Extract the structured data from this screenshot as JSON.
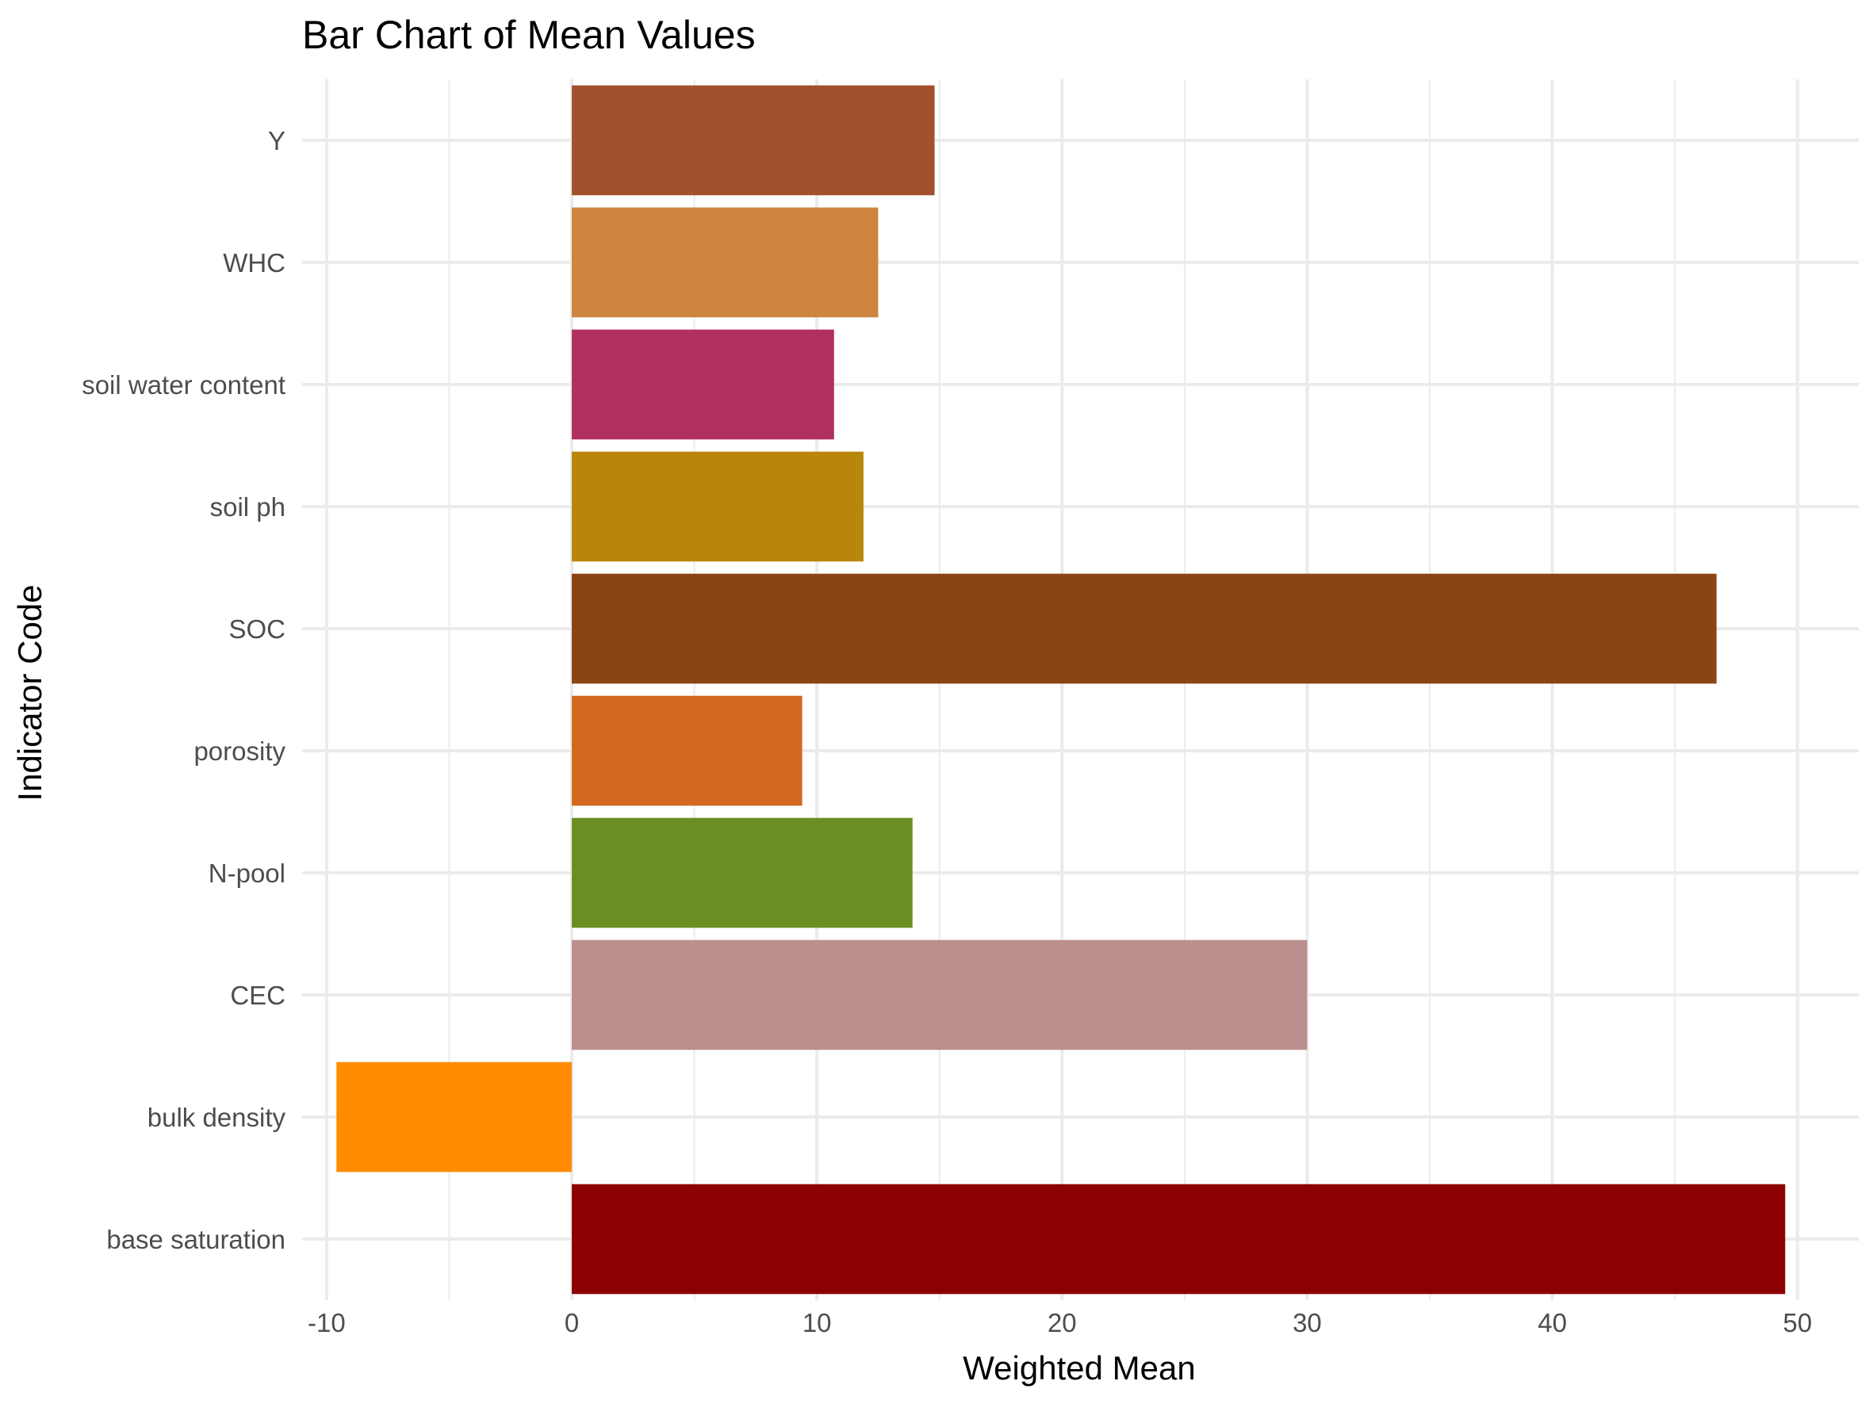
{
  "chart_data": {
    "type": "bar",
    "orientation": "horizontal",
    "title": "Bar Chart of Mean Values",
    "xlabel": "Weighted Mean",
    "ylabel": "Indicator Code",
    "xlim": [
      -11,
      52.5
    ],
    "x_ticks": [
      -10,
      0,
      10,
      20,
      30,
      40,
      50
    ],
    "x_tick_labels": [
      "-10",
      "0",
      "10",
      "20",
      "30",
      "40",
      "50"
    ],
    "grid": true,
    "legend": "none",
    "categories": [
      "base saturation",
      "bulk density",
      "CEC",
      "N-pool",
      "porosity",
      "SOC",
      "soil ph",
      "soil water content",
      "WHC",
      "Y"
    ],
    "values": [
      49.5,
      -9.6,
      30.0,
      13.9,
      9.4,
      46.7,
      11.9,
      10.7,
      12.5,
      14.8
    ],
    "colors": [
      "#8B0000",
      "#FF8C00",
      "#BC8F8F",
      "#6B8E23",
      "#D2691E",
      "#8B4513",
      "#B8860B",
      "#B03060",
      "#CD853F",
      "#A0522D"
    ]
  }
}
